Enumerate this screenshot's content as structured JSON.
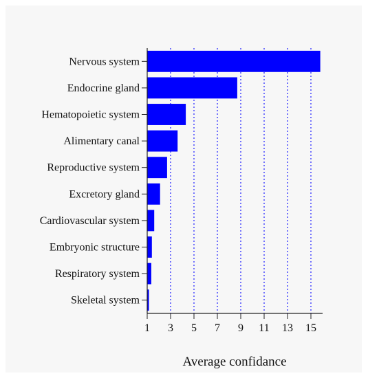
{
  "chart_data": {
    "type": "bar",
    "orientation": "horizontal",
    "categories": [
      "Nervous system",
      "Endocrine gland",
      "Hematopoietic system",
      "Alimentary canal",
      "Reproductive system",
      "Excretory gland",
      "Cardiovascular system",
      "Embryonic structure",
      "Respiratory system",
      "Skeletal system"
    ],
    "values": [
      15.8,
      8.7,
      4.3,
      3.6,
      2.7,
      2.1,
      1.6,
      1.4,
      1.35,
      1.15
    ],
    "title": "",
    "xlabel": "Average confidance",
    "ylabel": "",
    "xlim": [
      1,
      16
    ],
    "xticks": [
      1,
      3,
      5,
      7,
      9,
      11,
      13,
      15
    ],
    "grid": "vertical dotted",
    "bar_color": "#0000ff",
    "grid_color": "#1a1aff"
  }
}
